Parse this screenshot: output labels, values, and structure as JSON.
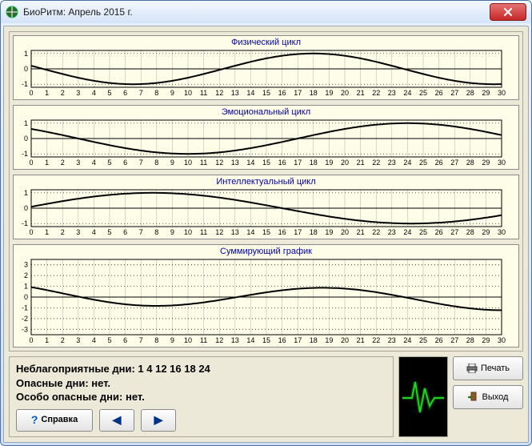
{
  "window": {
    "title": "БиоРитм: Апрель 2015 г."
  },
  "charts": {
    "background": "#fefde8",
    "grid_color": "#b0b0b0",
    "axis_color": "#000000",
    "dotted_color": "#000000",
    "line_color": "#000000",
    "line_width": 2,
    "title_color": "#0000aa",
    "tick_font_size": 9,
    "x_min": 0,
    "x_max": 30,
    "x_ticks": [
      0,
      1,
      2,
      3,
      4,
      5,
      6,
      7,
      8,
      9,
      10,
      11,
      12,
      13,
      14,
      15,
      16,
      17,
      18,
      19,
      20,
      21,
      22,
      23,
      24,
      25,
      26,
      27,
      28,
      29,
      30
    ],
    "panels": [
      {
        "id": "physical",
        "title": "Физический цикл",
        "height": 64,
        "y_min": -1.2,
        "y_max": 1.2,
        "y_ticks": [
          -1,
          0,
          1
        ],
        "sine": {
          "period": 23,
          "amplitude": 1,
          "phase_day": 12.25
        }
      },
      {
        "id": "emotional",
        "title": "Эмоциональный цикл",
        "height": 64,
        "y_min": -1.2,
        "y_max": 1.2,
        "y_ticks": [
          -1,
          0,
          1
        ],
        "sine": {
          "period": 28,
          "amplitude": 1,
          "phase_day": 17
        }
      },
      {
        "id": "intellectual",
        "title": "Интеллектуальный цикл",
        "height": 64,
        "y_min": -1.2,
        "y_max": 1.2,
        "y_ticks": [
          -1,
          0,
          1
        ],
        "sine": {
          "period": 33,
          "amplitude": 1,
          "phase_day": 32.5
        }
      },
      {
        "id": "sum",
        "title": "Суммирующий график",
        "height": 112,
        "y_min": -3.5,
        "y_max": 3.5,
        "y_ticks": [
          -3,
          -2,
          -1,
          0,
          1,
          2,
          3
        ],
        "sum_of": [
          "physical",
          "emotional",
          "intellectual"
        ]
      }
    ]
  },
  "info": {
    "line1_label": "Неблагоприятные дни:",
    "line1_value": "1 4 12 16 18 24",
    "line2_label": "Опасные дни:",
    "line2_value": "нет.",
    "line3_label": "Особо опасные дни:",
    "line3_value": "нет."
  },
  "buttons": {
    "print": "Печать",
    "exit": "Выход",
    "help": "Справка"
  },
  "pulse": {
    "bg": "#000000",
    "line": "#22d322"
  }
}
